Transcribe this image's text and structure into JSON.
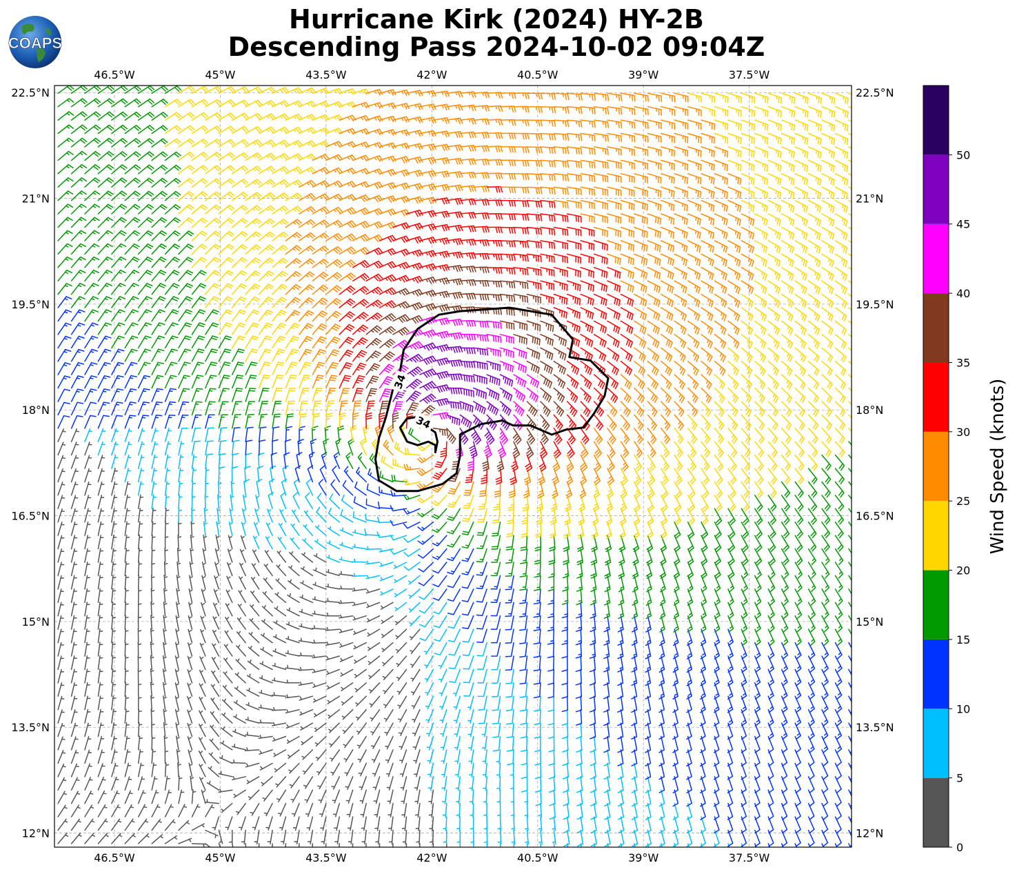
{
  "figure": {
    "title_line1": "Hurricane Kirk (2024) HY-2B",
    "title_line2": "Descending Pass 2024-10-02 09:04Z",
    "logo_text": "COAPS"
  },
  "map": {
    "lon_range": [
      -47.35,
      -36.05
    ],
    "lat_range": [
      11.8,
      22.6
    ],
    "lon_ticks": [
      {
        "value": -46.5,
        "label": "46.5°W"
      },
      {
        "value": -45.0,
        "label": "45°W"
      },
      {
        "value": -43.5,
        "label": "43.5°W"
      },
      {
        "value": -42.0,
        "label": "42°W"
      },
      {
        "value": -40.5,
        "label": "40.5°W"
      },
      {
        "value": -39.0,
        "label": "39°W"
      },
      {
        "value": -37.5,
        "label": "37.5°W"
      }
    ],
    "lat_ticks": [
      {
        "value": 22.5,
        "label": "22.5°N"
      },
      {
        "value": 21.0,
        "label": "21°N"
      },
      {
        "value": 19.5,
        "label": "19.5°N"
      },
      {
        "value": 18.0,
        "label": "18°N"
      },
      {
        "value": 16.5,
        "label": "16.5°N"
      },
      {
        "value": 15.0,
        "label": "15°N"
      },
      {
        "value": 13.5,
        "label": "13.5°N"
      },
      {
        "value": 12.0,
        "label": "12°N"
      }
    ],
    "gridlines": true,
    "storm_center": {
      "lon": -42.0,
      "lat": 17.7
    },
    "contour_label": "34",
    "outer_34kt_contour": [
      [
        -41.6,
        19.4
      ],
      [
        -40.9,
        19.45
      ],
      [
        -40.3,
        19.35
      ],
      [
        -40.0,
        19.0
      ],
      [
        -40.05,
        18.75
      ],
      [
        -39.75,
        18.7
      ],
      [
        -39.5,
        18.45
      ],
      [
        -39.55,
        18.2
      ],
      [
        -39.7,
        17.95
      ],
      [
        -39.85,
        17.75
      ],
      [
        -40.1,
        17.72
      ],
      [
        -40.3,
        17.65
      ],
      [
        -40.6,
        17.78
      ],
      [
        -40.85,
        17.78
      ],
      [
        -41.0,
        17.85
      ],
      [
        -41.3,
        17.8
      ],
      [
        -41.6,
        17.65
      ],
      [
        -41.6,
        17.35
      ],
      [
        -41.65,
        17.1
      ],
      [
        -41.85,
        16.95
      ],
      [
        -42.2,
        16.85
      ],
      [
        -42.5,
        16.85
      ],
      [
        -42.75,
        17.0
      ],
      [
        -42.8,
        17.3
      ],
      [
        -42.75,
        17.6
      ],
      [
        -42.65,
        17.9
      ],
      [
        -42.55,
        18.3
      ],
      [
        -42.45,
        18.55
      ],
      [
        -42.4,
        18.85
      ],
      [
        -42.2,
        19.15
      ],
      [
        -41.9,
        19.35
      ],
      [
        -41.6,
        19.4
      ]
    ],
    "inner_34kt_contour": [
      [
        -41.95,
        17.4
      ],
      [
        -41.95,
        17.5
      ],
      [
        -42.05,
        17.55
      ],
      [
        -42.2,
        17.5
      ],
      [
        -42.35,
        17.55
      ],
      [
        -42.45,
        17.75
      ],
      [
        -42.35,
        17.88
      ],
      [
        -42.2,
        17.9
      ],
      [
        -42.1,
        17.82
      ],
      [
        -42.05,
        17.75
      ],
      [
        -41.95,
        17.68
      ],
      [
        -41.92,
        17.55
      ],
      [
        -41.95,
        17.4
      ]
    ]
  },
  "colorbar": {
    "title": "Wind Speed (knots)",
    "min": 0,
    "max": 55,
    "bins": [
      {
        "from": 0,
        "to": 5,
        "color": "#555555"
      },
      {
        "from": 5,
        "to": 10,
        "color": "#00bfff"
      },
      {
        "from": 10,
        "to": 15,
        "color": "#0033ff"
      },
      {
        "from": 15,
        "to": 20,
        "color": "#009900"
      },
      {
        "from": 20,
        "to": 25,
        "color": "#ffd700"
      },
      {
        "from": 25,
        "to": 30,
        "color": "#ff8c00"
      },
      {
        "from": 30,
        "to": 35,
        "color": "#ff0000"
      },
      {
        "from": 35,
        "to": 40,
        "color": "#7f3a20"
      },
      {
        "from": 40,
        "to": 45,
        "color": "#ff00ff"
      },
      {
        "from": 45,
        "to": 50,
        "color": "#8000c0"
      },
      {
        "from": 50,
        "to": 55,
        "color": "#2a0060"
      }
    ],
    "tick_values": [
      0,
      5,
      10,
      15,
      20,
      25,
      30,
      35,
      40,
      45,
      50
    ]
  }
}
